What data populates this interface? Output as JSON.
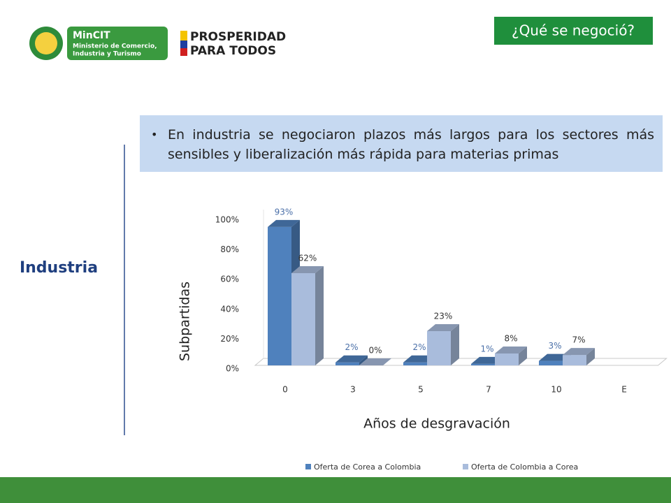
{
  "header": {
    "title": "¿Qué se negoció?",
    "logo_name": "MinCIT",
    "logo_line1": "Ministerio de Comercio,",
    "logo_line2": "Industria y Turismo",
    "brand_line1": "PROSPERIDAD",
    "brand_line2": "PARA TODOS"
  },
  "bullet": "En industria se negociaron plazos más largos para los sectores más sensibles y liberalización más rápida para materias primas",
  "side_label": "Industria",
  "chart_data": {
    "type": "bar3d",
    "categories": [
      "0",
      "3",
      "5",
      "7",
      "10",
      "E"
    ],
    "series": [
      {
        "name": "Oferta de Corea a Colombia",
        "color": "#4f81bd",
        "values": [
          93,
          2,
          2,
          1,
          3,
          null
        ],
        "value_labels": [
          "93%",
          "2%",
          "2%",
          "1%",
          "3%",
          null
        ]
      },
      {
        "name": "Oferta de Colombia a Corea",
        "color": "#a9bcdc",
        "values": [
          62,
          0,
          23,
          8,
          7,
          null
        ],
        "value_labels": [
          "62%",
          "0%",
          "23%",
          "8%",
          "7%",
          null
        ]
      }
    ],
    "ylim": [
      0,
      100
    ],
    "yticks": [
      {
        "value": 0,
        "label": "0%"
      },
      {
        "value": 20,
        "label": "20%"
      },
      {
        "value": 40,
        "label": "40%"
      },
      {
        "value": 60,
        "label": "60%"
      },
      {
        "value": 80,
        "label": "80%"
      },
      {
        "value": 100,
        "label": "100%"
      }
    ],
    "xlabel": "Años de desgravación",
    "ylabel": "Subpartidas",
    "grid": false,
    "legend": "bottom"
  }
}
